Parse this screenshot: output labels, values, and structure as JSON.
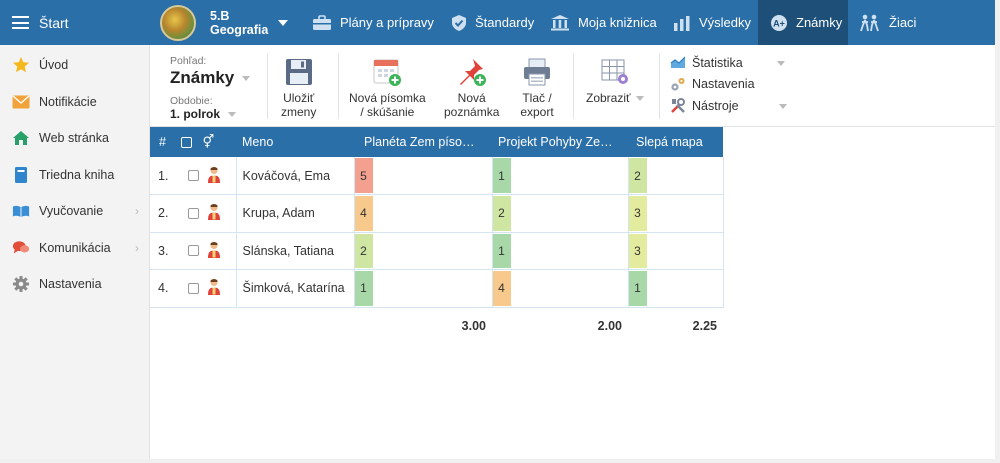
{
  "topbar": {
    "start_label": "Štart",
    "class_code": "5.B",
    "class_subject": "Geografia",
    "nav": [
      {
        "label": "Plány a prípravy",
        "icon": "briefcase-icon"
      },
      {
        "label": "Štandardy",
        "icon": "shield-check-icon"
      },
      {
        "label": "Moja knižnica",
        "icon": "library-icon"
      },
      {
        "label": "Výsledky",
        "icon": "bar-chart-icon"
      },
      {
        "label": "Známky",
        "icon": "grades-icon",
        "active": true
      },
      {
        "label": "Žiaci",
        "icon": "students-icon"
      }
    ]
  },
  "sidebar": {
    "items": [
      {
        "label": "Úvod",
        "icon": "star-icon"
      },
      {
        "label": "Notifikácie",
        "icon": "envelope-icon"
      },
      {
        "label": "Web stránka",
        "icon": "home-icon"
      },
      {
        "label": "Triedna kniha",
        "icon": "book-icon"
      },
      {
        "label": "Vyučovanie",
        "icon": "open-book-icon",
        "has_submenu": true
      },
      {
        "label": "Komunikácia",
        "icon": "chat-icon",
        "has_submenu": true
      },
      {
        "label": "Nastavenia",
        "icon": "gear-icon"
      }
    ]
  },
  "toolbar": {
    "view_caption": "Pohľad:",
    "view_value": "Známky",
    "period_caption": "Obdobie:",
    "period_value": "1. polrok",
    "save_l1": "Uložiť",
    "save_l2": "zmeny",
    "new_test_l1": "Nová písomka",
    "new_test_l2": "/ skúšanie",
    "new_note_l1": "Nová",
    "new_note_l2": "poznámka",
    "print_l1": "Tlač /",
    "print_l2": "export",
    "show_label": "Zobraziť",
    "stats_label": "Štatistika",
    "settings_label": "Nastavenia",
    "tools_label": "Nástroje"
  },
  "table": {
    "headers": {
      "num": "#",
      "name": "Meno",
      "col1": "Planéta Zem píso…",
      "col2": "Projekt Pohyby Ze…",
      "col3": "Slepá mapa"
    },
    "rows": [
      {
        "num": "1.",
        "name": "Kováčová, Ema",
        "g1": "5",
        "g2": "1",
        "g3": "2"
      },
      {
        "num": "2.",
        "name": "Krupa, Adam",
        "g1": "4",
        "g2": "2",
        "g3": "3"
      },
      {
        "num": "3.",
        "name": "Slánska, Tatiana",
        "g1": "2",
        "g2": "1",
        "g3": "3"
      },
      {
        "num": "4.",
        "name": "Šimková, Katarína",
        "g1": "1",
        "g2": "4",
        "g3": "1"
      }
    ],
    "averages": {
      "col1": "3.00",
      "col2": "2.00",
      "col3": "2.25"
    }
  },
  "grade_colors": {
    "1": "#a9d8a8",
    "2": "#cfe6a3",
    "3": "#e3ec9e",
    "4": "#f7c98c",
    "5": "#f4a08e"
  }
}
